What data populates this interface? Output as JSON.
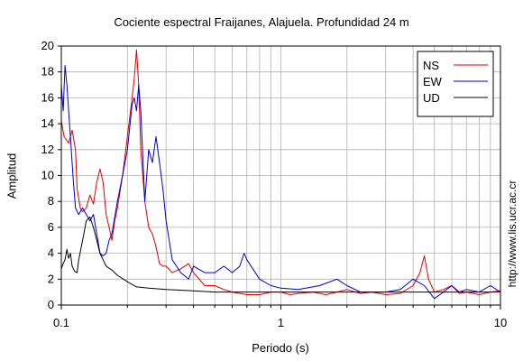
{
  "chart_data": {
    "type": "line",
    "title": "Cociente espectral Fraijanes, Alajuela. Profundidad 24 m",
    "xlabel": "Periodo (s)",
    "ylabel": "Amplitud",
    "xscale": "log",
    "xlim": [
      0.1,
      10
    ],
    "ylim": [
      0,
      20
    ],
    "xticks": [
      0.1,
      1,
      10
    ],
    "xtick_labels": [
      "0.1",
      "1",
      "10"
    ],
    "yticks": [
      0,
      2,
      4,
      6,
      8,
      10,
      12,
      14,
      16,
      18,
      20
    ],
    "ytick_labels": [
      "0",
      "2",
      "4",
      "6",
      "8",
      "10",
      "12",
      "14",
      "16",
      "18",
      "20"
    ],
    "grid": true,
    "legend_position": "top-right",
    "annotation": "http://www.lis.ucr.ac.cr",
    "series": [
      {
        "name": "NS",
        "color": "#e00000",
        "x": [
          0.1,
          0.103,
          0.108,
          0.112,
          0.116,
          0.118,
          0.122,
          0.125,
          0.13,
          0.135,
          0.14,
          0.145,
          0.15,
          0.155,
          0.16,
          0.165,
          0.17,
          0.175,
          0.18,
          0.19,
          0.2,
          0.21,
          0.215,
          0.22,
          0.225,
          0.23,
          0.24,
          0.25,
          0.26,
          0.27,
          0.28,
          0.29,
          0.3,
          0.32,
          0.35,
          0.38,
          0.4,
          0.45,
          0.5,
          0.55,
          0.6,
          0.65,
          0.7,
          0.8,
          0.9,
          1.0,
          1.1,
          1.2,
          1.4,
          1.6,
          1.8,
          2.0,
          2.3,
          2.6,
          3.0,
          3.5,
          4.0,
          4.3,
          4.5,
          4.7,
          5.0,
          5.5,
          6.0,
          6.5,
          7.0,
          8.0,
          9.0,
          10.0
        ],
        "values": [
          14.2,
          13.0,
          12.5,
          13.5,
          12.0,
          9.0,
          7.5,
          7.2,
          7.5,
          8.5,
          7.8,
          9.5,
          10.5,
          9.5,
          7.0,
          6.0,
          5.0,
          6.5,
          7.5,
          10.0,
          13.0,
          16.0,
          17.5,
          19.7,
          17.0,
          12.0,
          8.0,
          6.0,
          5.5,
          4.5,
          3.2,
          3.0,
          3.0,
          2.5,
          2.8,
          3.2,
          2.5,
          1.5,
          1.5,
          1.2,
          1.0,
          0.9,
          0.8,
          0.8,
          1.0,
          1.0,
          0.8,
          0.9,
          1.0,
          0.8,
          1.0,
          1.2,
          0.9,
          1.0,
          0.8,
          0.9,
          1.5,
          2.5,
          3.8,
          2.0,
          1.0,
          1.2,
          1.5,
          0.9,
          1.0,
          0.8,
          1.0,
          1.1
        ]
      },
      {
        "name": "EW",
        "color": "#0000cc",
        "x": [
          0.1,
          0.102,
          0.104,
          0.106,
          0.108,
          0.11,
          0.113,
          0.116,
          0.12,
          0.125,
          0.13,
          0.135,
          0.14,
          0.145,
          0.15,
          0.155,
          0.16,
          0.165,
          0.17,
          0.18,
          0.19,
          0.2,
          0.21,
          0.215,
          0.22,
          0.225,
          0.23,
          0.24,
          0.25,
          0.26,
          0.27,
          0.28,
          0.29,
          0.3,
          0.32,
          0.35,
          0.38,
          0.4,
          0.45,
          0.5,
          0.55,
          0.6,
          0.65,
          0.68,
          0.7,
          0.8,
          0.9,
          1.0,
          1.2,
          1.5,
          1.8,
          2.0,
          2.3,
          2.5,
          3.0,
          3.5,
          4.0,
          4.5,
          5.0,
          5.5,
          6.0,
          6.5,
          7.0,
          8.0,
          9.0,
          10.0
        ],
        "values": [
          17.0,
          15.0,
          18.5,
          17.0,
          15.0,
          13.0,
          10.0,
          7.5,
          7.0,
          7.5,
          7.0,
          6.5,
          7.0,
          5.5,
          4.0,
          3.8,
          4.0,
          5.0,
          5.5,
          8.0,
          10.0,
          12.0,
          15.5,
          16.0,
          15.0,
          17.0,
          15.0,
          8.0,
          12.0,
          11.0,
          13.0,
          11.0,
          9.0,
          6.5,
          3.5,
          2.5,
          2.0,
          3.0,
          2.5,
          2.5,
          3.0,
          2.5,
          3.0,
          4.0,
          3.5,
          2.0,
          1.5,
          1.3,
          1.2,
          1.5,
          2.0,
          1.5,
          1.0,
          1.0,
          1.0,
          1.2,
          2.0,
          1.5,
          0.5,
          1.0,
          1.5,
          1.0,
          1.2,
          1.0,
          1.5,
          1.0
        ]
      },
      {
        "name": "UD",
        "color": "#000000",
        "x": [
          0.1,
          0.102,
          0.104,
          0.106,
          0.108,
          0.11,
          0.112,
          0.115,
          0.118,
          0.12,
          0.125,
          0.13,
          0.135,
          0.14,
          0.145,
          0.15,
          0.155,
          0.16,
          0.17,
          0.18,
          0.2,
          0.22,
          0.25,
          0.3,
          0.4,
          0.5,
          0.7,
          1.0,
          1.5,
          2.0,
          3.0,
          4.0,
          5.0,
          6.0,
          7.0,
          8.0,
          9.0,
          10.0
        ],
        "values": [
          2.8,
          3.2,
          3.5,
          4.3,
          3.6,
          4.0,
          3.0,
          2.6,
          2.5,
          3.5,
          5.0,
          6.5,
          6.8,
          6.0,
          5.0,
          4.0,
          3.5,
          3.0,
          2.7,
          2.3,
          1.8,
          1.4,
          1.3,
          1.2,
          1.1,
          1.0,
          1.0,
          1.0,
          1.0,
          1.0,
          1.0,
          1.0,
          1.0,
          1.0,
          1.0,
          1.0,
          1.0,
          1.0
        ]
      }
    ]
  }
}
